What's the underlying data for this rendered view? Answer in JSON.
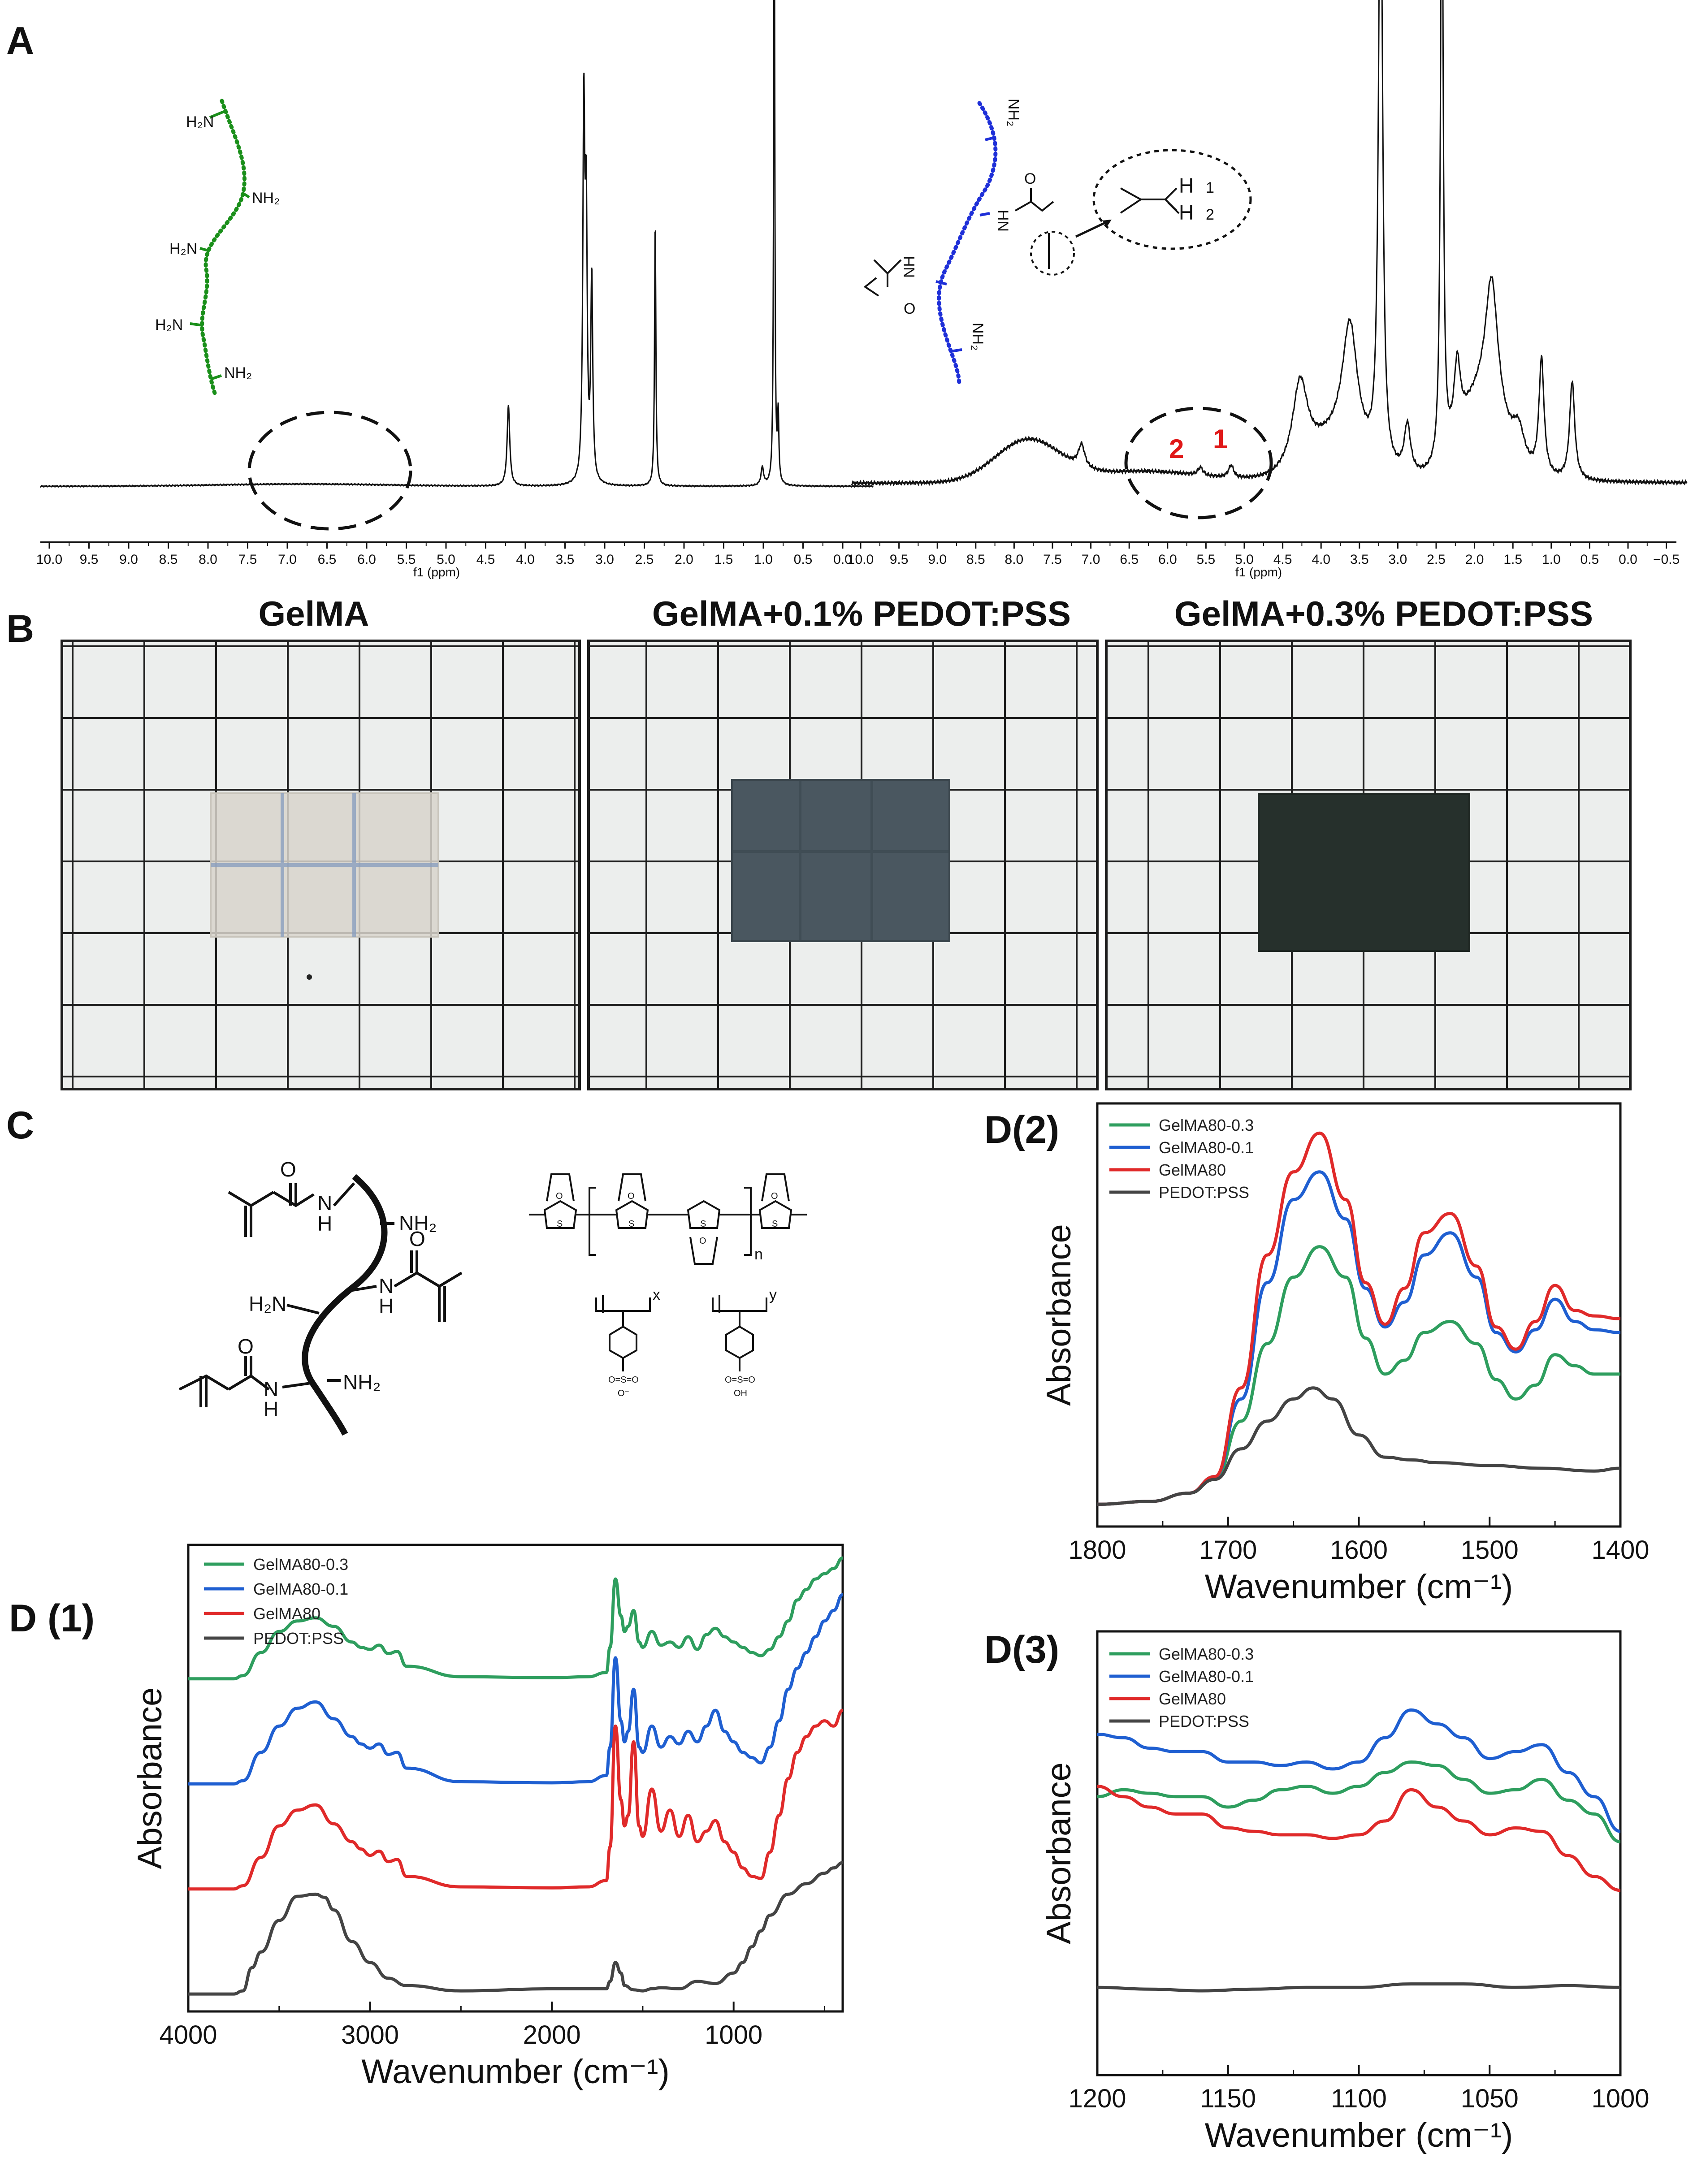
{
  "panel_labels": {
    "A": "A",
    "B": "B",
    "C": "C",
    "D1": "D (1)",
    "D2": "D(2)",
    "D3": "D(3)"
  },
  "colors": {
    "green": "#2e9e5e",
    "blue": "#1f5fd1",
    "red": "#e02a2a",
    "gray": "#444444",
    "amine_chain": "#1a8f1a",
    "gelma_chain": "#1e2fd8",
    "peak_label": "#e01818"
  },
  "nmr": {
    "xlabel": "f1 (ppm)",
    "left_ticks": [
      "10.0",
      "9.5",
      "9.0",
      "8.5",
      "8.0",
      "7.5",
      "7.0",
      "6.5",
      "6.0",
      "5.5",
      "5.0",
      "4.5",
      "4.0",
      "3.5",
      "3.0",
      "2.5",
      "2.0",
      "1.5",
      "1.0",
      "0.5",
      "0.0"
    ],
    "right_ticks": [
      "10.0",
      "9.5",
      "9.0",
      "8.5",
      "8.0",
      "7.5",
      "7.0",
      "6.5",
      "6.0",
      "5.5",
      "5.0",
      "4.5",
      "4.0",
      "3.5",
      "3.0",
      "2.5",
      "2.0",
      "1.5",
      "1.0",
      "0.5",
      "0.0",
      "−0.5"
    ],
    "peak_labels": [
      "2",
      "1"
    ],
    "gelatin_groups": [
      "H₂N",
      "NH₂",
      "H₂N",
      "H₂N",
      "NH₂"
    ],
    "gelma_groups": {
      "nh2_top": "NH₂",
      "nh_top": "HN",
      "nh_left": "NH",
      "nh2_bottom": "NH₂",
      "o": "O",
      "h1": "H",
      "h1_num": "1",
      "h2": "H",
      "h2_num": "2"
    }
  },
  "photos": {
    "titles": [
      "GelMA",
      "GelMA+0.1% PEDOT:PSS",
      "GelMA+0.3% PEDOT:PSS"
    ]
  },
  "structure_c": {
    "gelma_labels": {
      "o1": "O",
      "nh1": "N",
      "h1": "H",
      "nh2_1": "NH₂",
      "h2n": "H₂N",
      "nh_mid": "N",
      "h_mid": "H",
      "o2": "O",
      "o3": "O",
      "nh3": "N",
      "h3": "H",
      "nh2_2": "NH₂"
    },
    "pedot_labels": {
      "s": "S",
      "o": "O",
      "n": "n",
      "x": "x",
      "y": "y",
      "so3": "O=S=O",
      "o_minus": "O⁻",
      "oh": "OH"
    }
  },
  "chart_data": [
    {
      "id": "D1",
      "type": "line",
      "title": "",
      "xlabel": "Wavenumber (cm⁻¹)",
      "ylabel": "Absorbance",
      "xlim": [
        4000,
        400
      ],
      "xticks": [
        "4000",
        "3000",
        "2000",
        "1000"
      ],
      "legend": [
        "GelMA80-0.3",
        "GelMA80-0.1",
        "GelMA80",
        "PEDOT:PSS"
      ],
      "series": [
        {
          "name": "GelMA80-0.3",
          "color": "#2e9e5e",
          "offset": 3.0,
          "x": [
            4000,
            3750,
            3700,
            3600,
            3500,
            3400,
            3300,
            3200,
            3100,
            3050,
            3000,
            2950,
            2900,
            2850,
            2800,
            2500,
            2000,
            1800,
            1700,
            1680,
            1650,
            1620,
            1600,
            1580,
            1550,
            1520,
            1500,
            1450,
            1400,
            1350,
            1300,
            1250,
            1200,
            1150,
            1100,
            1050,
            1000,
            950,
            900,
            850,
            800,
            750,
            700,
            650,
            600,
            550,
            500,
            450,
            400
          ],
          "y": [
            0.0,
            0.0,
            0.03,
            0.25,
            0.45,
            0.55,
            0.58,
            0.5,
            0.35,
            0.3,
            0.28,
            0.32,
            0.24,
            0.26,
            0.12,
            0.02,
            0.01,
            0.02,
            0.06,
            0.3,
            0.95,
            0.6,
            0.45,
            0.5,
            0.65,
            0.35,
            0.3,
            0.45,
            0.32,
            0.35,
            0.3,
            0.4,
            0.28,
            0.42,
            0.48,
            0.4,
            0.35,
            0.3,
            0.25,
            0.22,
            0.28,
            0.4,
            0.55,
            0.75,
            0.85,
            0.95,
            1.0,
            1.05,
            1.15
          ]
        },
        {
          "name": "GelMA80-0.1",
          "color": "#1f5fd1",
          "offset": 2.0,
          "x": [
            4000,
            3750,
            3700,
            3600,
            3500,
            3400,
            3300,
            3200,
            3100,
            3050,
            3000,
            2950,
            2900,
            2850,
            2800,
            2500,
            2000,
            1800,
            1700,
            1680,
            1650,
            1620,
            1600,
            1580,
            1550,
            1520,
            1500,
            1450,
            1400,
            1350,
            1300,
            1250,
            1200,
            1150,
            1100,
            1050,
            1000,
            950,
            900,
            850,
            800,
            750,
            700,
            650,
            600,
            550,
            500,
            450,
            400
          ],
          "y": [
            0.0,
            0.0,
            0.03,
            0.3,
            0.55,
            0.72,
            0.78,
            0.62,
            0.45,
            0.38,
            0.34,
            0.38,
            0.28,
            0.3,
            0.15,
            0.02,
            0.01,
            0.02,
            0.08,
            0.35,
            1.2,
            0.6,
            0.4,
            0.5,
            0.9,
            0.35,
            0.3,
            0.55,
            0.35,
            0.45,
            0.38,
            0.5,
            0.4,
            0.55,
            0.7,
            0.5,
            0.4,
            0.3,
            0.25,
            0.2,
            0.35,
            0.6,
            0.9,
            1.1,
            1.25,
            1.4,
            1.55,
            1.65,
            1.8
          ]
        },
        {
          "name": "GelMA80",
          "color": "#e02a2a",
          "offset": 1.0,
          "x": [
            4000,
            3750,
            3700,
            3600,
            3500,
            3400,
            3300,
            3200,
            3100,
            3050,
            3000,
            2950,
            2900,
            2850,
            2800,
            2500,
            2000,
            1800,
            1700,
            1680,
            1650,
            1620,
            1600,
            1580,
            1550,
            1520,
            1500,
            1450,
            1400,
            1350,
            1300,
            1250,
            1200,
            1150,
            1100,
            1050,
            1000,
            950,
            900,
            850,
            800,
            750,
            700,
            650,
            600,
            550,
            500,
            450,
            400
          ],
          "y": [
            0.0,
            0.0,
            0.03,
            0.3,
            0.6,
            0.75,
            0.8,
            0.62,
            0.45,
            0.38,
            0.32,
            0.36,
            0.26,
            0.28,
            0.12,
            0.02,
            0.01,
            0.02,
            0.08,
            0.4,
            1.55,
            0.85,
            0.6,
            0.7,
            1.4,
            0.6,
            0.5,
            0.95,
            0.55,
            0.75,
            0.5,
            0.7,
            0.45,
            0.55,
            0.65,
            0.45,
            0.35,
            0.2,
            0.12,
            0.1,
            0.35,
            0.7,
            1.05,
            1.3,
            1.45,
            1.55,
            1.6,
            1.55,
            1.7
          ]
        },
        {
          "name": "PEDOT:PSS",
          "color": "#444444",
          "offset": 0.0,
          "x": [
            4000,
            3750,
            3700,
            3650,
            3600,
            3500,
            3400,
            3300,
            3250,
            3200,
            3100,
            3000,
            2900,
            2800,
            2500,
            2000,
            1800,
            1700,
            1680,
            1650,
            1620,
            1600,
            1550,
            1500,
            1450,
            1400,
            1300,
            1200,
            1100,
            1000,
            950,
            900,
            850,
            800,
            700,
            600,
            500,
            450,
            400
          ],
          "y": [
            0.0,
            0.0,
            0.03,
            0.25,
            0.4,
            0.7,
            0.93,
            0.95,
            0.92,
            0.8,
            0.5,
            0.3,
            0.15,
            0.08,
            0.03,
            0.05,
            0.05,
            0.05,
            0.12,
            0.3,
            0.2,
            0.08,
            0.04,
            0.03,
            0.05,
            0.06,
            0.05,
            0.12,
            0.1,
            0.2,
            0.3,
            0.45,
            0.6,
            0.75,
            0.95,
            1.05,
            1.15,
            1.2,
            1.25
          ]
        }
      ]
    },
    {
      "id": "D2",
      "type": "line",
      "title": "",
      "xlabel": "Wavenumber (cm⁻¹)",
      "ylabel": "Absorbance",
      "xlim": [
        1800,
        1400
      ],
      "xticks": [
        "1800",
        "1700",
        "1600",
        "1500",
        "1400"
      ],
      "legend": [
        "GelMA80-0.3",
        "GelMA80-0.1",
        "GelMA80",
        "PEDOT:PSS"
      ],
      "series": [
        {
          "name": "GelMA80-0.3",
          "color": "#2e9e5e",
          "x": [
            1800,
            1760,
            1730,
            1710,
            1690,
            1670,
            1650,
            1630,
            1610,
            1595,
            1580,
            1565,
            1550,
            1530,
            1510,
            1495,
            1480,
            1465,
            1450,
            1435,
            1420,
            1400
          ],
          "y": [
            0.0,
            0.01,
            0.04,
            0.09,
            0.3,
            0.58,
            0.82,
            0.93,
            0.82,
            0.6,
            0.47,
            0.52,
            0.62,
            0.66,
            0.58,
            0.45,
            0.38,
            0.43,
            0.54,
            0.5,
            0.47,
            0.47
          ]
        },
        {
          "name": "GelMA80-0.1",
          "color": "#1f5fd1",
          "x": [
            1800,
            1760,
            1730,
            1710,
            1690,
            1670,
            1650,
            1630,
            1610,
            1595,
            1580,
            1565,
            1550,
            1530,
            1510,
            1495,
            1480,
            1465,
            1450,
            1435,
            1420,
            1400
          ],
          "y": [
            0.0,
            0.01,
            0.04,
            0.1,
            0.38,
            0.8,
            1.1,
            1.2,
            1.03,
            0.78,
            0.64,
            0.73,
            0.9,
            0.98,
            0.82,
            0.62,
            0.55,
            0.63,
            0.74,
            0.66,
            0.63,
            0.62
          ]
        },
        {
          "name": "GelMA80",
          "color": "#e02a2a",
          "x": [
            1800,
            1760,
            1730,
            1710,
            1690,
            1670,
            1650,
            1630,
            1610,
            1595,
            1580,
            1565,
            1550,
            1530,
            1510,
            1495,
            1480,
            1465,
            1450,
            1435,
            1420,
            1400
          ],
          "y": [
            0.0,
            0.01,
            0.04,
            0.1,
            0.42,
            0.9,
            1.2,
            1.34,
            1.1,
            0.8,
            0.65,
            0.78,
            0.98,
            1.05,
            0.86,
            0.64,
            0.56,
            0.66,
            0.79,
            0.7,
            0.68,
            0.67
          ]
        },
        {
          "name": "PEDOT:PSS",
          "color": "#444444",
          "x": [
            1800,
            1760,
            1730,
            1710,
            1690,
            1670,
            1650,
            1635,
            1620,
            1600,
            1580,
            1560,
            1540,
            1500,
            1460,
            1420,
            1400
          ],
          "y": [
            0.0,
            0.01,
            0.04,
            0.09,
            0.2,
            0.3,
            0.38,
            0.42,
            0.38,
            0.25,
            0.17,
            0.16,
            0.15,
            0.14,
            0.13,
            0.12,
            0.13
          ]
        }
      ]
    },
    {
      "id": "D3",
      "type": "line",
      "title": "",
      "xlabel": "Wavenumber (cm⁻¹)",
      "ylabel": "Absorbance",
      "xlim": [
        1200,
        1000
      ],
      "xticks": [
        "1200",
        "1150",
        "1100",
        "1050",
        "1000"
      ],
      "legend": [
        "GelMA80-0.3",
        "GelMA80-0.1",
        "GelMA80",
        "PEDOT:PSS"
      ],
      "series": [
        {
          "name": "GelMA80-0.3",
          "color": "#2e9e5e",
          "x": [
            1200,
            1190,
            1180,
            1170,
            1160,
            1150,
            1140,
            1130,
            1120,
            1110,
            1100,
            1090,
            1080,
            1070,
            1060,
            1050,
            1040,
            1030,
            1020,
            1010,
            1000
          ],
          "y": [
            0.55,
            0.57,
            0.56,
            0.55,
            0.55,
            0.52,
            0.54,
            0.57,
            0.58,
            0.56,
            0.58,
            0.62,
            0.65,
            0.64,
            0.6,
            0.56,
            0.57,
            0.6,
            0.54,
            0.5,
            0.42
          ]
        },
        {
          "name": "GelMA80-0.1",
          "color": "#1f5fd1",
          "x": [
            1200,
            1190,
            1180,
            1170,
            1160,
            1150,
            1140,
            1130,
            1120,
            1110,
            1100,
            1090,
            1080,
            1070,
            1060,
            1050,
            1040,
            1030,
            1020,
            1010,
            1000
          ],
          "y": [
            0.73,
            0.72,
            0.69,
            0.68,
            0.68,
            0.65,
            0.65,
            0.64,
            0.65,
            0.63,
            0.65,
            0.72,
            0.8,
            0.76,
            0.72,
            0.66,
            0.68,
            0.7,
            0.62,
            0.55,
            0.45
          ]
        },
        {
          "name": "GelMA80",
          "color": "#e02a2a",
          "x": [
            1200,
            1190,
            1180,
            1170,
            1160,
            1150,
            1140,
            1130,
            1120,
            1110,
            1100,
            1090,
            1080,
            1070,
            1060,
            1050,
            1040,
            1030,
            1020,
            1010,
            1000
          ],
          "y": [
            0.58,
            0.55,
            0.52,
            0.5,
            0.5,
            0.46,
            0.45,
            0.44,
            0.44,
            0.43,
            0.44,
            0.48,
            0.57,
            0.52,
            0.48,
            0.44,
            0.46,
            0.45,
            0.38,
            0.32,
            0.28
          ]
        },
        {
          "name": "PEDOT:PSS",
          "color": "#444444",
          "x": [
            1200,
            1180,
            1160,
            1140,
            1120,
            1100,
            1080,
            1060,
            1040,
            1020,
            1000
          ],
          "y": [
            0.0,
            -0.005,
            -0.01,
            -0.005,
            0.0,
            0.0,
            0.01,
            0.01,
            0.0,
            0.005,
            0.0
          ]
        }
      ]
    }
  ]
}
